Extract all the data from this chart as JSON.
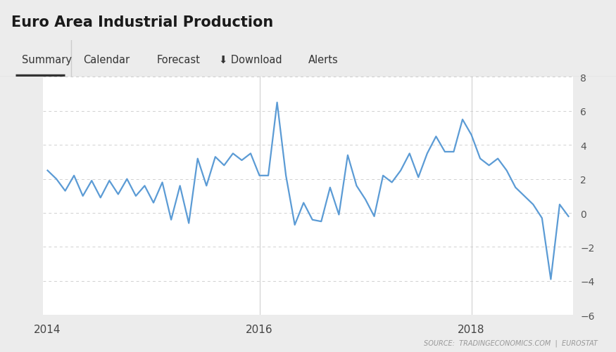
{
  "title": "Euro Area Industrial Production",
  "title_fontsize": 15,
  "title_fontweight": "bold",
  "background_color": "#ececec",
  "chart_bg_color": "#ffffff",
  "nav_bg_color": "#ffffff",
  "line_color": "#5b9bd5",
  "line_width": 1.6,
  "ylim": [
    -6,
    8
  ],
  "yticks": [
    -6,
    -4,
    -2,
    0,
    2,
    4,
    6,
    8
  ],
  "source_text": "SOURCE:  TRADINGECONOMICS.COM  |  EUROSTAT",
  "nav_items": [
    "Summary",
    "Calendar",
    "Forecast",
    "⬇ Download",
    "Alerts"
  ],
  "x_values": [
    0,
    1,
    2,
    3,
    4,
    5,
    6,
    7,
    8,
    9,
    10,
    11,
    12,
    13,
    14,
    15,
    16,
    17,
    18,
    19,
    20,
    21,
    22,
    23,
    24,
    25,
    26,
    27,
    28,
    29,
    30,
    31,
    32,
    33,
    34,
    35,
    36,
    37,
    38,
    39,
    40,
    41,
    42,
    43,
    44,
    45,
    46,
    47,
    48,
    49,
    50,
    51,
    52,
    53,
    54,
    55,
    56,
    57,
    58,
    59
  ],
  "y_values": [
    2.5,
    2.0,
    1.3,
    2.2,
    1.0,
    1.9,
    0.9,
    1.9,
    1.1,
    2.0,
    1.0,
    1.6,
    0.6,
    1.8,
    -0.4,
    1.6,
    -0.6,
    3.2,
    1.6,
    3.3,
    2.8,
    3.5,
    3.1,
    3.5,
    2.2,
    2.2,
    6.5,
    2.2,
    -0.7,
    0.6,
    -0.4,
    -0.5,
    1.5,
    -0.1,
    3.4,
    1.6,
    0.8,
    -0.2,
    2.2,
    1.8,
    2.5,
    3.5,
    2.1,
    3.5,
    4.5,
    3.6,
    3.6,
    5.5,
    4.6,
    3.2,
    2.8,
    3.2,
    2.5,
    1.5,
    1.0,
    0.5,
    -0.3,
    -3.9,
    0.5,
    -0.2
  ],
  "x_tick_positions": [
    0,
    24,
    48
  ],
  "x_tick_labels": [
    "2014",
    "2016",
    "2018"
  ],
  "grid_color": "#d0d0d0",
  "vline_color": "#d0d0d0",
  "vline_positions": [
    24,
    48
  ]
}
